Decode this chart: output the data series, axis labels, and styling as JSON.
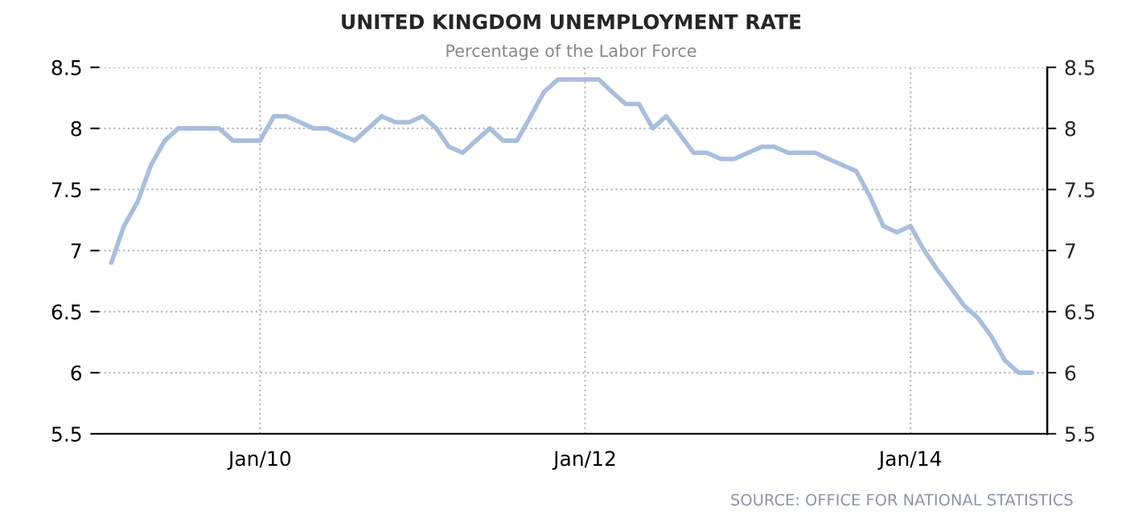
{
  "chart_data": {
    "type": "line",
    "title": "UNITED KINGDOM UNEMPLOYMENT RATE",
    "subtitle": "Percentage of the Labor Force",
    "annotations": [
      "SOURCE: OFFICE FOR NATIONAL STATISTICS"
    ],
    "x": [
      "2009-02",
      "2009-03",
      "2009-04",
      "2009-05",
      "2009-06",
      "2009-07",
      "2009-08",
      "2009-09",
      "2009-10",
      "2009-11",
      "2009-12",
      "2010-01",
      "2010-02",
      "2010-03",
      "2010-04",
      "2010-05",
      "2010-06",
      "2010-07",
      "2010-08",
      "2010-09",
      "2010-10",
      "2010-11",
      "2010-12",
      "2011-01",
      "2011-02",
      "2011-03",
      "2011-04",
      "2011-05",
      "2011-06",
      "2011-07",
      "2011-08",
      "2011-09",
      "2011-10",
      "2011-11",
      "2011-12",
      "2012-01",
      "2012-02",
      "2012-03",
      "2012-04",
      "2012-05",
      "2012-06",
      "2012-07",
      "2012-08",
      "2012-09",
      "2012-10",
      "2012-11",
      "2012-12",
      "2013-01",
      "2013-02",
      "2013-03",
      "2013-04",
      "2013-05",
      "2013-06",
      "2013-07",
      "2013-08",
      "2013-09",
      "2013-10",
      "2013-11",
      "2013-12",
      "2014-01",
      "2014-02",
      "2014-03",
      "2014-04",
      "2014-05",
      "2014-06",
      "2014-07",
      "2014-08",
      "2014-09",
      "2014-10"
    ],
    "series": [
      {
        "color": "#a9bedd",
        "values": [
          6.9,
          7.2,
          7.4,
          7.7,
          7.9,
          8.0,
          8.0,
          8.0,
          8.0,
          7.9,
          7.9,
          7.9,
          8.1,
          8.1,
          8.05,
          8.0,
          8.0,
          7.95,
          7.9,
          8.0,
          8.1,
          8.05,
          8.05,
          8.1,
          8.0,
          7.85,
          7.8,
          7.9,
          8.0,
          7.9,
          7.9,
          8.1,
          8.3,
          8.4,
          8.4,
          8.4,
          8.4,
          8.3,
          8.2,
          8.2,
          8.0,
          8.1,
          7.95,
          7.8,
          7.8,
          7.75,
          7.75,
          7.8,
          7.85,
          7.85,
          7.8,
          7.8,
          7.8,
          7.75,
          7.7,
          7.65,
          7.45,
          7.2,
          7.15,
          7.2,
          7.0,
          6.85,
          6.7,
          6.55,
          6.45,
          6.3,
          6.1,
          6.0,
          6.0
        ]
      }
    ],
    "xlim": [
      "2009-01-05",
      "2014-11-04"
    ],
    "xticks": [
      {
        "value": "2010-01",
        "label": "Jan/10"
      },
      {
        "value": "2012-01",
        "label": "Jan/12"
      },
      {
        "value": "2014-01",
        "label": "Jan/14"
      }
    ],
    "ylim": [
      5.5,
      8.5
    ],
    "yticks": [
      5.5,
      6,
      6.5,
      7,
      7.5,
      8,
      8.5
    ],
    "y2lim": [
      5.5,
      8.5
    ],
    "y2ticks": [
      5.5,
      6,
      6.5,
      7,
      7.5,
      8,
      8.5
    ],
    "grid": true,
    "line_style": "solid",
    "marker": "none"
  }
}
